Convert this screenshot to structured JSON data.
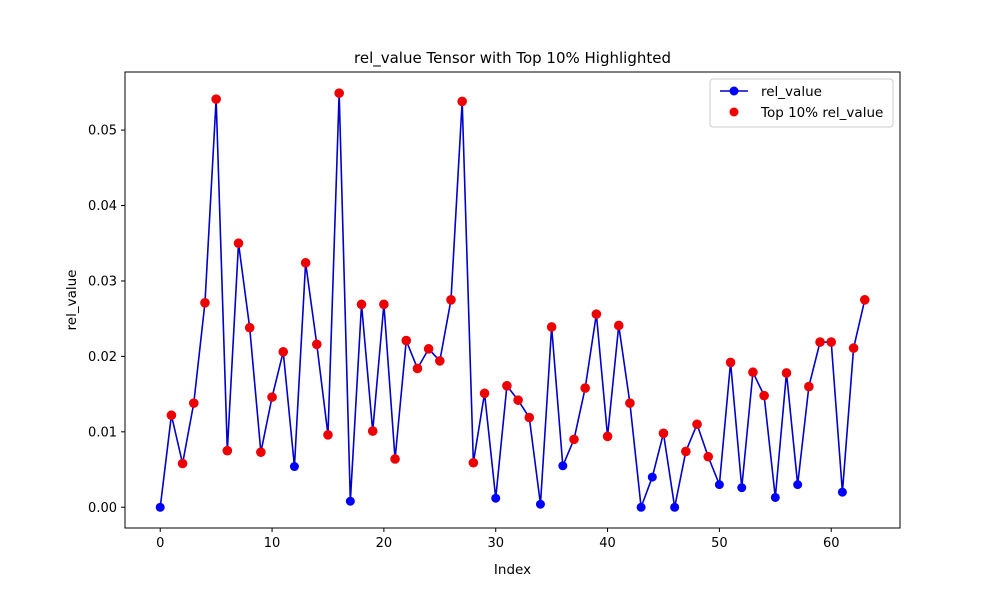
{
  "chart_data": {
    "type": "line",
    "title": "rel_value Tensor with Top 10% Highlighted",
    "xlabel": "Index",
    "ylabel": "rel_value",
    "xlim": [
      -3.15,
      66.15
    ],
    "ylim": [
      -0.00275,
      0.0577
    ],
    "xticks": [
      0,
      10,
      20,
      30,
      40,
      50,
      60
    ],
    "yticks": [
      0.0,
      0.01,
      0.02,
      0.03,
      0.04,
      0.05
    ],
    "ytick_labels": [
      "0.00",
      "0.01",
      "0.02",
      "0.03",
      "0.04",
      "0.05"
    ],
    "grid": false,
    "legend_position": "upper right",
    "colors": {
      "line": "#0000cc",
      "marker": "#0000ff",
      "highlight": "#ee0000"
    },
    "series": [
      {
        "name": "rel_value",
        "x": [
          0,
          1,
          2,
          3,
          4,
          5,
          6,
          7,
          8,
          9,
          10,
          11,
          12,
          13,
          14,
          15,
          16,
          17,
          18,
          19,
          20,
          21,
          22,
          23,
          24,
          25,
          26,
          27,
          28,
          29,
          30,
          31,
          32,
          33,
          34,
          35,
          36,
          37,
          38,
          39,
          40,
          41,
          42,
          43,
          44,
          45,
          46,
          47,
          48,
          49,
          50,
          51,
          52,
          53,
          54,
          55,
          56,
          57,
          58,
          59,
          60,
          61,
          62,
          63
        ],
        "values": [
          0.0,
          0.0122,
          0.0058,
          0.0138,
          0.0271,
          0.0541,
          0.0075,
          0.035,
          0.0238,
          0.0073,
          0.0146,
          0.0206,
          0.0054,
          0.0324,
          0.0216,
          0.0096,
          0.0549,
          0.0008,
          0.0269,
          0.0101,
          0.0269,
          0.0064,
          0.0221,
          0.0184,
          0.021,
          0.0194,
          0.0275,
          0.0538,
          0.0059,
          0.0151,
          0.0012,
          0.0161,
          0.0142,
          0.0119,
          0.0004,
          0.0239,
          0.0055,
          0.009,
          0.0158,
          0.0256,
          0.0094,
          0.0241,
          0.0138,
          0.0,
          0.004,
          0.0098,
          0.0,
          0.0074,
          0.011,
          0.0067,
          0.003,
          0.0192,
          0.0026,
          0.0179,
          0.0148,
          0.0013,
          0.0178,
          0.003,
          0.016,
          0.0219,
          0.0219,
          0.002,
          0.0211,
          0.0275
        ]
      },
      {
        "name": "Top 10% rel_value",
        "x": [
          1,
          2,
          3,
          4,
          5,
          6,
          7,
          8,
          9,
          10,
          11,
          13,
          14,
          15,
          16,
          18,
          19,
          20,
          21,
          22,
          23,
          24,
          25,
          26,
          27,
          28,
          29,
          31,
          32,
          33,
          35,
          37,
          38,
          39,
          40,
          41,
          42,
          45,
          47,
          48,
          49,
          51,
          53,
          54,
          56,
          58,
          59,
          60,
          62,
          63
        ],
        "values": [
          0.0122,
          0.0058,
          0.0138,
          0.0271,
          0.0541,
          0.0075,
          0.035,
          0.0238,
          0.0073,
          0.0146,
          0.0206,
          0.0324,
          0.0216,
          0.0096,
          0.0549,
          0.0269,
          0.0101,
          0.0269,
          0.0064,
          0.0221,
          0.0184,
          0.021,
          0.0194,
          0.0275,
          0.0538,
          0.0059,
          0.0151,
          0.0161,
          0.0142,
          0.0119,
          0.0239,
          0.009,
          0.0158,
          0.0256,
          0.0094,
          0.0241,
          0.0138,
          0.0098,
          0.0074,
          0.011,
          0.0067,
          0.0192,
          0.0179,
          0.0148,
          0.0178,
          0.016,
          0.0219,
          0.0219,
          0.0211,
          0.0275
        ]
      }
    ]
  }
}
